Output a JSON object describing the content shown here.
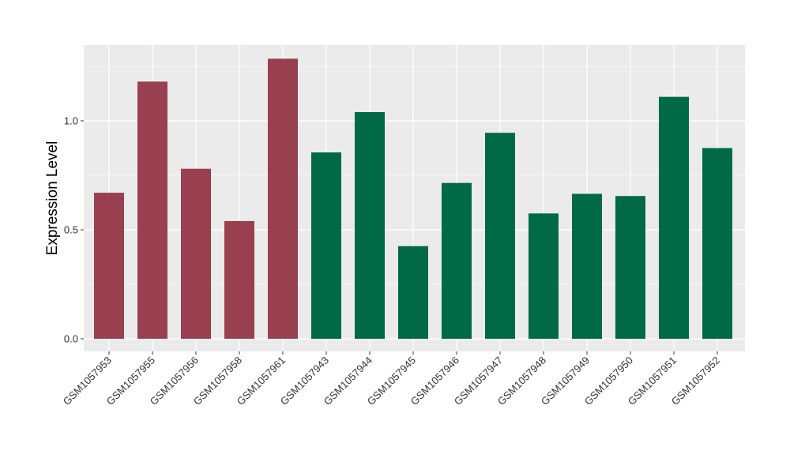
{
  "chart_data": {
    "type": "bar",
    "title": "",
    "xlabel": "",
    "ylabel": "Expression Level",
    "ylim": [
      0,
      1.35
    ],
    "yticks": [
      0.0,
      0.5,
      1.0
    ],
    "ytick_labels": [
      "0.0",
      "0.5",
      "1.0"
    ],
    "grid": true,
    "legend": "none",
    "categories": [
      "GSM1057953",
      "GSM1057955",
      "GSM1057956",
      "GSM1057958",
      "GSM1057961",
      "GSM1057943",
      "GSM1057944",
      "GSM1057945",
      "GSM1057946",
      "GSM1057947",
      "GSM1057948",
      "GSM1057949",
      "GSM1057950",
      "GSM1057951",
      "GSM1057952"
    ],
    "values": [
      0.67,
      1.18,
      0.78,
      0.54,
      1.285,
      0.855,
      1.04,
      0.425,
      0.715,
      0.945,
      0.575,
      0.665,
      0.655,
      1.11,
      0.875
    ],
    "groups": [
      "a",
      "a",
      "a",
      "a",
      "a",
      "b",
      "b",
      "b",
      "b",
      "b",
      "b",
      "b",
      "b",
      "b",
      "b"
    ],
    "group_colors": {
      "a": "#98404f",
      "b": "#006a46"
    },
    "panel_background": "#ebebeb",
    "grid_color": "#ffffff"
  }
}
